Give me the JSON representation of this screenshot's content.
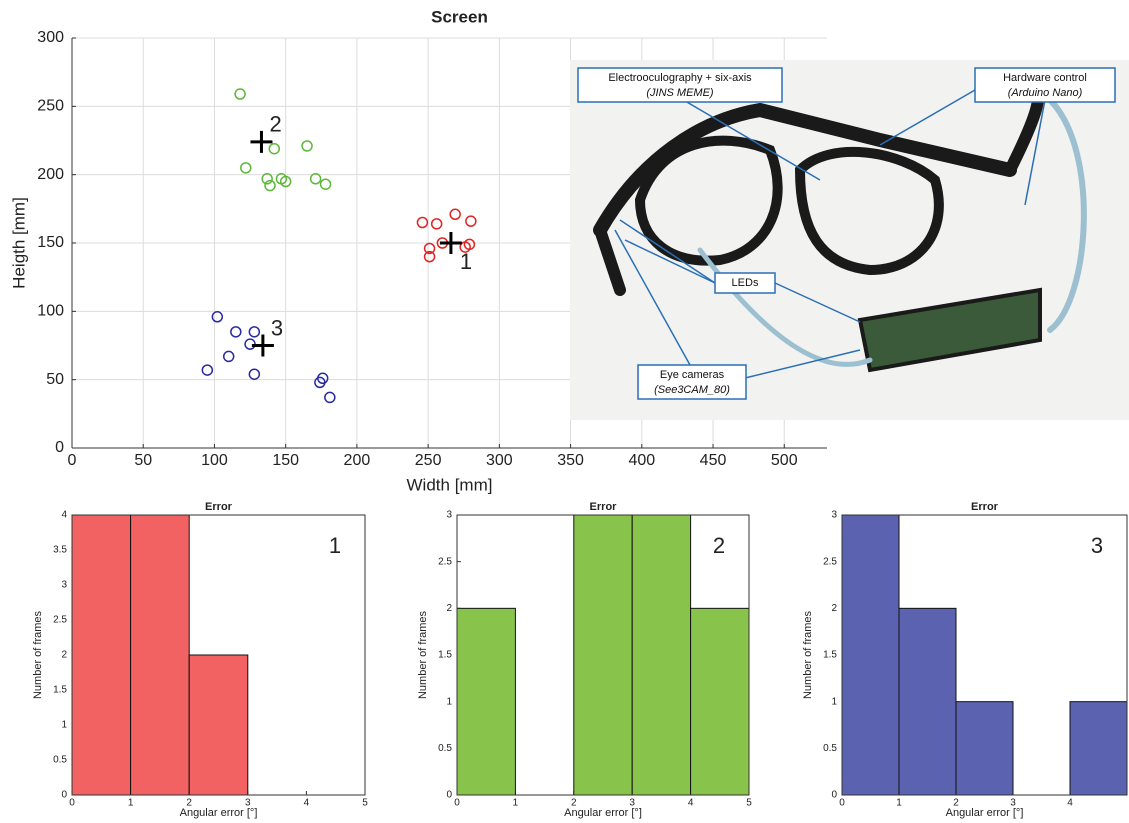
{
  "chart_data": [
    {
      "type": "scatter",
      "title": "Screen",
      "xlabel": "Width [mm]",
      "ylabel": "Heigth [mm]",
      "xlim": [
        0,
        530
      ],
      "ylim": [
        0,
        300
      ],
      "xticks": [
        0,
        50,
        100,
        150,
        200,
        250,
        300,
        350,
        400,
        450,
        500
      ],
      "yticks": [
        0,
        50,
        100,
        150,
        200,
        250,
        300
      ],
      "grid": true,
      "series": [
        {
          "color": "#e02424",
          "x": [
            246,
            256,
            269,
            280,
            251,
            251,
            260,
            276,
            279
          ],
          "y": [
            165,
            164,
            171,
            166,
            146,
            140,
            150,
            147,
            149
          ]
        },
        {
          "color": "#5cb83a",
          "x": [
            118,
            122,
            142,
            165,
            137,
            139,
            147,
            150,
            171,
            178
          ],
          "y": [
            259,
            205,
            219,
            221,
            197,
            192,
            197,
            195,
            197,
            193
          ]
        },
        {
          "color": "#2a2aa0",
          "x": [
            102,
            115,
            128,
            125,
            110,
            95,
            128,
            174,
            176,
            181
          ],
          "y": [
            96,
            85,
            85,
            76,
            67,
            57,
            54,
            48,
            51,
            37
          ]
        }
      ],
      "targets": {
        "x": [
          266,
          133,
          134
        ],
        "y": [
          150,
          224,
          75
        ],
        "labels": [
          "1",
          "2",
          "3"
        ]
      }
    },
    {
      "type": "histogram",
      "title": "Error",
      "xlabel": "Angular error [°]",
      "ylabel": "Number of frames",
      "annotation": "1",
      "color": "#f26262",
      "bins": [
        0,
        1,
        2,
        3,
        4,
        5
      ],
      "counts": [
        4,
        4,
        2,
        0,
        0
      ],
      "xlim": [
        0,
        5
      ],
      "ylim": [
        0,
        4
      ],
      "xticks": [
        0,
        1,
        2,
        3,
        4,
        5
      ],
      "yticks": [
        0,
        0.5,
        1,
        1.5,
        2,
        2.5,
        3,
        3.5,
        4
      ]
    },
    {
      "type": "histogram",
      "title": "Error",
      "xlabel": "Angular error [°]",
      "ylabel": "Number of frames",
      "annotation": "2",
      "color": "#88c44c",
      "bins": [
        0,
        1,
        2,
        3,
        4,
        5
      ],
      "counts": [
        2,
        0,
        3,
        3,
        2
      ],
      "xlim": [
        0,
        5
      ],
      "ylim": [
        0,
        3
      ],
      "xticks": [
        0,
        1,
        2,
        3,
        4,
        5
      ],
      "yticks": [
        0,
        0.5,
        1,
        1.5,
        2,
        2.5,
        3
      ]
    },
    {
      "type": "histogram",
      "title": "Error",
      "xlabel": "Angular error [°]",
      "ylabel": "Number of frames",
      "annotation": "3",
      "color": "#5b63b0",
      "bins": [
        0,
        1,
        2,
        3,
        4,
        5
      ],
      "counts": [
        3,
        2,
        1,
        0,
        1
      ],
      "xlim": [
        0,
        5
      ],
      "ylim": [
        0,
        3
      ],
      "xticks": [
        0,
        1,
        2,
        3,
        4
      ],
      "yticks": [
        0,
        0.5,
        1,
        1.5,
        2,
        2.5,
        3
      ]
    }
  ],
  "photo": {
    "callouts": [
      {
        "lines": [
          "Electrooculography + six-axis",
          "(JINS MEME)"
        ]
      },
      {
        "lines": [
          "Hardware control",
          "(Arduino Nano)"
        ]
      },
      {
        "lines": [
          "LEDs"
        ]
      },
      {
        "lines": [
          "Eye cameras",
          "(See3CAM_80)"
        ]
      }
    ]
  }
}
